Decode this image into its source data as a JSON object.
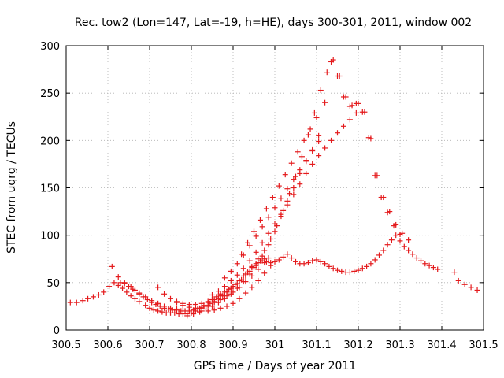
{
  "chart_data": {
    "type": "scatter",
    "title": "Rec. tow2 (Lon=147, Lat=-19, h=HE), days 300-301, 2011, window 002",
    "xlabel": "GPS time / Days of year 2011",
    "ylabel": "STEC from uqrg / TECUs",
    "xlim": [
      300.5,
      301.5
    ],
    "ylim": [
      0,
      300
    ],
    "xticks": [
      300.5,
      300.6,
      300.7,
      300.8,
      300.9,
      301,
      301.1,
      301.2,
      301.3,
      301.4,
      301.5
    ],
    "xtick_labels": [
      "300.5",
      "300.6",
      "300.7",
      "300.8",
      "300.9",
      "301",
      "301.1",
      "301.2",
      "301.3",
      "301.4",
      "301.5"
    ],
    "yticks": [
      0,
      50,
      100,
      150,
      200,
      250,
      300
    ],
    "ytick_labels": [
      "0",
      "50",
      "100",
      "150",
      "200",
      "250",
      "300"
    ],
    "grid": true,
    "marker": "+",
    "color": "#e41a1c",
    "series": [
      {
        "name": "STEC",
        "x": [
          300.51,
          300.525,
          300.54,
          300.552,
          300.565,
          300.578,
          300.59,
          300.603,
          300.615,
          300.625,
          300.635,
          300.645,
          300.655,
          300.665,
          300.675,
          300.69,
          300.7,
          300.71,
          300.72,
          300.73,
          300.74,
          300.75,
          300.76,
          300.77,
          300.78,
          300.79,
          300.8,
          300.81,
          300.82,
          300.83,
          300.84,
          300.85,
          300.86,
          300.87,
          300.88,
          300.89,
          300.9,
          300.91,
          300.92,
          300.93,
          300.94,
          300.95,
          300.96,
          300.97,
          300.98,
          300.99,
          301.0,
          301.01,
          301.02,
          301.03,
          301.04,
          301.05,
          301.06,
          301.07,
          301.08,
          301.09,
          301.1,
          301.11,
          301.12,
          301.13,
          301.14,
          301.15,
          301.16,
          301.17,
          301.18,
          301.19,
          301.2,
          301.21,
          301.22,
          301.23,
          301.24,
          301.25,
          301.26,
          301.27,
          301.28,
          301.29,
          301.3,
          301.31,
          301.32,
          301.33,
          301.34,
          301.35,
          301.36,
          301.37,
          301.38,
          301.39,
          301.43,
          301.44,
          301.455,
          301.47,
          301.485,
          300.61,
          300.625,
          300.64,
          300.655,
          300.665,
          300.675,
          300.685,
          300.695,
          300.705,
          300.715,
          300.725,
          300.735,
          300.745,
          300.755,
          300.765,
          300.775,
          300.785,
          300.795,
          300.805,
          300.815,
          300.825,
          300.835,
          300.845,
          300.855,
          300.865,
          300.875,
          300.885,
          300.895,
          300.905,
          300.915,
          300.925,
          300.935,
          300.945,
          300.955,
          300.965,
          300.975,
          300.985,
          300.63,
          300.64,
          300.65,
          300.66,
          300.675,
          300.69,
          300.705,
          300.72,
          300.735,
          300.75,
          300.765,
          300.78,
          300.795,
          300.81,
          300.825,
          300.84,
          300.855,
          300.87,
          300.885,
          300.9,
          300.915,
          300.93,
          300.945,
          300.96,
          300.975,
          300.72,
          300.735,
          300.75,
          300.765,
          300.78,
          300.795,
          300.81,
          300.825,
          300.84,
          300.855,
          300.87,
          300.885,
          300.9,
          300.915,
          300.93,
          300.945,
          300.96,
          300.975,
          300.99,
          300.765,
          300.78,
          300.795,
          300.81,
          300.825,
          300.84,
          300.855,
          300.87,
          300.885,
          300.9,
          300.915,
          300.93,
          300.945,
          300.96,
          300.975,
          300.99,
          301.005,
          301.02,
          301.035,
          301.05,
          301.065,
          301.08,
          301.095,
          301.11,
          301.125,
          301.14,
          301.155,
          301.17,
          301.185,
          301.2,
          301.215,
          301.23,
          301.245,
          301.26,
          301.275,
          301.29,
          301.305,
          301.32,
          300.79,
          300.805,
          300.82,
          300.835,
          300.85,
          300.865,
          300.88,
          300.895,
          300.91,
          300.925,
          300.94,
          300.955,
          300.97,
          300.985,
          301.0,
          301.015,
          301.03,
          301.045,
          301.06,
          301.075,
          301.09,
          301.105,
          301.12,
          301.135,
          301.15,
          301.165,
          301.18,
          301.195,
          301.21,
          301.225,
          301.24,
          301.255,
          301.27,
          301.285,
          301.3,
          300.85,
          300.865,
          300.88,
          300.895,
          300.91,
          300.925,
          300.94,
          300.955,
          300.97,
          300.985,
          301.0,
          301.015,
          301.03,
          301.045,
          301.06,
          301.075,
          301.09,
          301.105,
          301.12,
          301.135,
          301.15,
          301.165,
          301.18,
          301.195,
          300.88,
          300.895,
          300.91,
          300.925,
          300.94,
          300.955,
          300.97,
          300.985,
          301.0,
          301.015,
          301.03,
          301.045,
          301.06,
          301.075,
          301.09,
          301.105,
          300.92,
          300.935,
          300.95,
          300.965,
          300.98,
          300.995,
          301.01,
          301.025,
          301.04,
          301.055,
          301.07,
          301.085,
          301.1
        ],
        "y": [
          29,
          29,
          31,
          33,
          35,
          37,
          40,
          46,
          50,
          47,
          44,
          40,
          36,
          33,
          30,
          26,
          23,
          21,
          20,
          19,
          18,
          18,
          18,
          17,
          17,
          17,
          18,
          20,
          23,
          26,
          29,
          32,
          35,
          38,
          40,
          43,
          46,
          49,
          53,
          57,
          62,
          66,
          71,
          73,
          72,
          71,
          72,
          74,
          77,
          80,
          76,
          72,
          70,
          70,
          71,
          73,
          74,
          72,
          70,
          67,
          65,
          63,
          62,
          61,
          61,
          62,
          63,
          65,
          67,
          70,
          74,
          79,
          84,
          90,
          95,
          100,
          94,
          88,
          84,
          80,
          76,
          73,
          70,
          68,
          66,
          64,
          61,
          52,
          48,
          45,
          42,
          67,
          56,
          50,
          46,
          42,
          38,
          35,
          32,
          29,
          27,
          25,
          23,
          22,
          21,
          21,
          20,
          20,
          20,
          21,
          22,
          23,
          25,
          28,
          30,
          33,
          36,
          40,
          44,
          48,
          52,
          57,
          61,
          66,
          70,
          73,
          75,
          76,
          50,
          49,
          46,
          43,
          39,
          35,
          31,
          28,
          25,
          23,
          22,
          22,
          22,
          23,
          24,
          26,
          29,
          32,
          36,
          40,
          45,
          51,
          57,
          64,
          71,
          45,
          38,
          33,
          29,
          26,
          24,
          22,
          20,
          20,
          21,
          23,
          25,
          28,
          33,
          39,
          45,
          52,
          60,
          68,
          30,
          28,
          27,
          27,
          28,
          30,
          32,
          36,
          40,
          46,
          52,
          59,
          67,
          75,
          84,
          96,
          110,
          126,
          144,
          162,
          183,
          206,
          229,
          253,
          272,
          285,
          268,
          246,
          237,
          239,
          230,
          202,
          163,
          140,
          125,
          111,
          102,
          95,
          15,
          17,
          19,
          22,
          25,
          29,
          33,
          38,
          44,
          51,
          59,
          68,
          78,
          90,
          104,
          120,
          136,
          150,
          165,
          178,
          190,
          205,
          240,
          283,
          268,
          246,
          236,
          239,
          230,
          203,
          163,
          140,
          124,
          110,
          101,
          37,
          41,
          46,
          52,
          58,
          65,
          73,
          82,
          92,
          102,
          112,
          122,
          132,
          143,
          154,
          165,
          175,
          184,
          192,
          200,
          208,
          215,
          222,
          229,
          55,
          62,
          70,
          79,
          89,
          99,
          109,
          119,
          129,
          139,
          149,
          159,
          169,
          179,
          189,
          199,
          80,
          92,
          104,
          116,
          128,
          140,
          152,
          164,
          176,
          188,
          200,
          212,
          224
        ]
      }
    ]
  }
}
